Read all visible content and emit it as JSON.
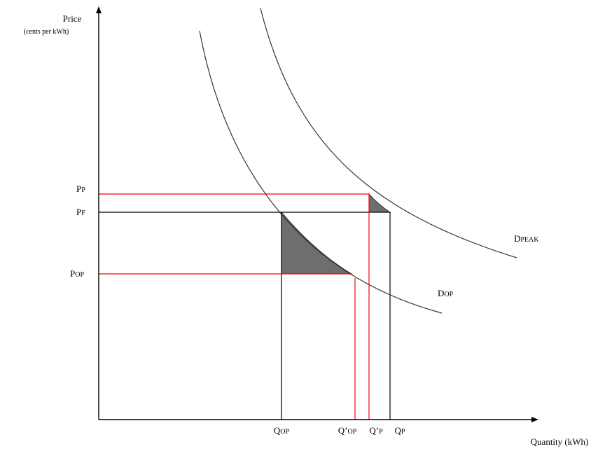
{
  "colors": {
    "axis": "#000000",
    "curve": "#333333",
    "guide_black": "#000000",
    "guide_red": "#ff0000",
    "shade": "#6e6e6e",
    "background": "#ffffff"
  },
  "axes": {
    "y_title": "Price",
    "y_unit": "(cents per kWh)",
    "x_title": "Quantity (kWh)"
  },
  "price_labels": {
    "peak": {
      "main": "P",
      "sub": "P"
    },
    "flat": {
      "main": "P",
      "sub": "F"
    },
    "offpeak": {
      "main": "P",
      "sub": "OP"
    }
  },
  "quantity_labels": {
    "q_op": {
      "main": "Q",
      "sub": "OP"
    },
    "q_prime_op": {
      "main": "Q’",
      "sub": "OP"
    },
    "q_prime_p": {
      "main": "Q’",
      "sub": "P"
    },
    "q_p": {
      "main": "Q",
      "sub": "P"
    }
  },
  "curve_labels": {
    "d_peak": {
      "main": "D",
      "sub": "PEAK"
    },
    "d_op": {
      "main": "D",
      "sub": "OP"
    }
  }
}
